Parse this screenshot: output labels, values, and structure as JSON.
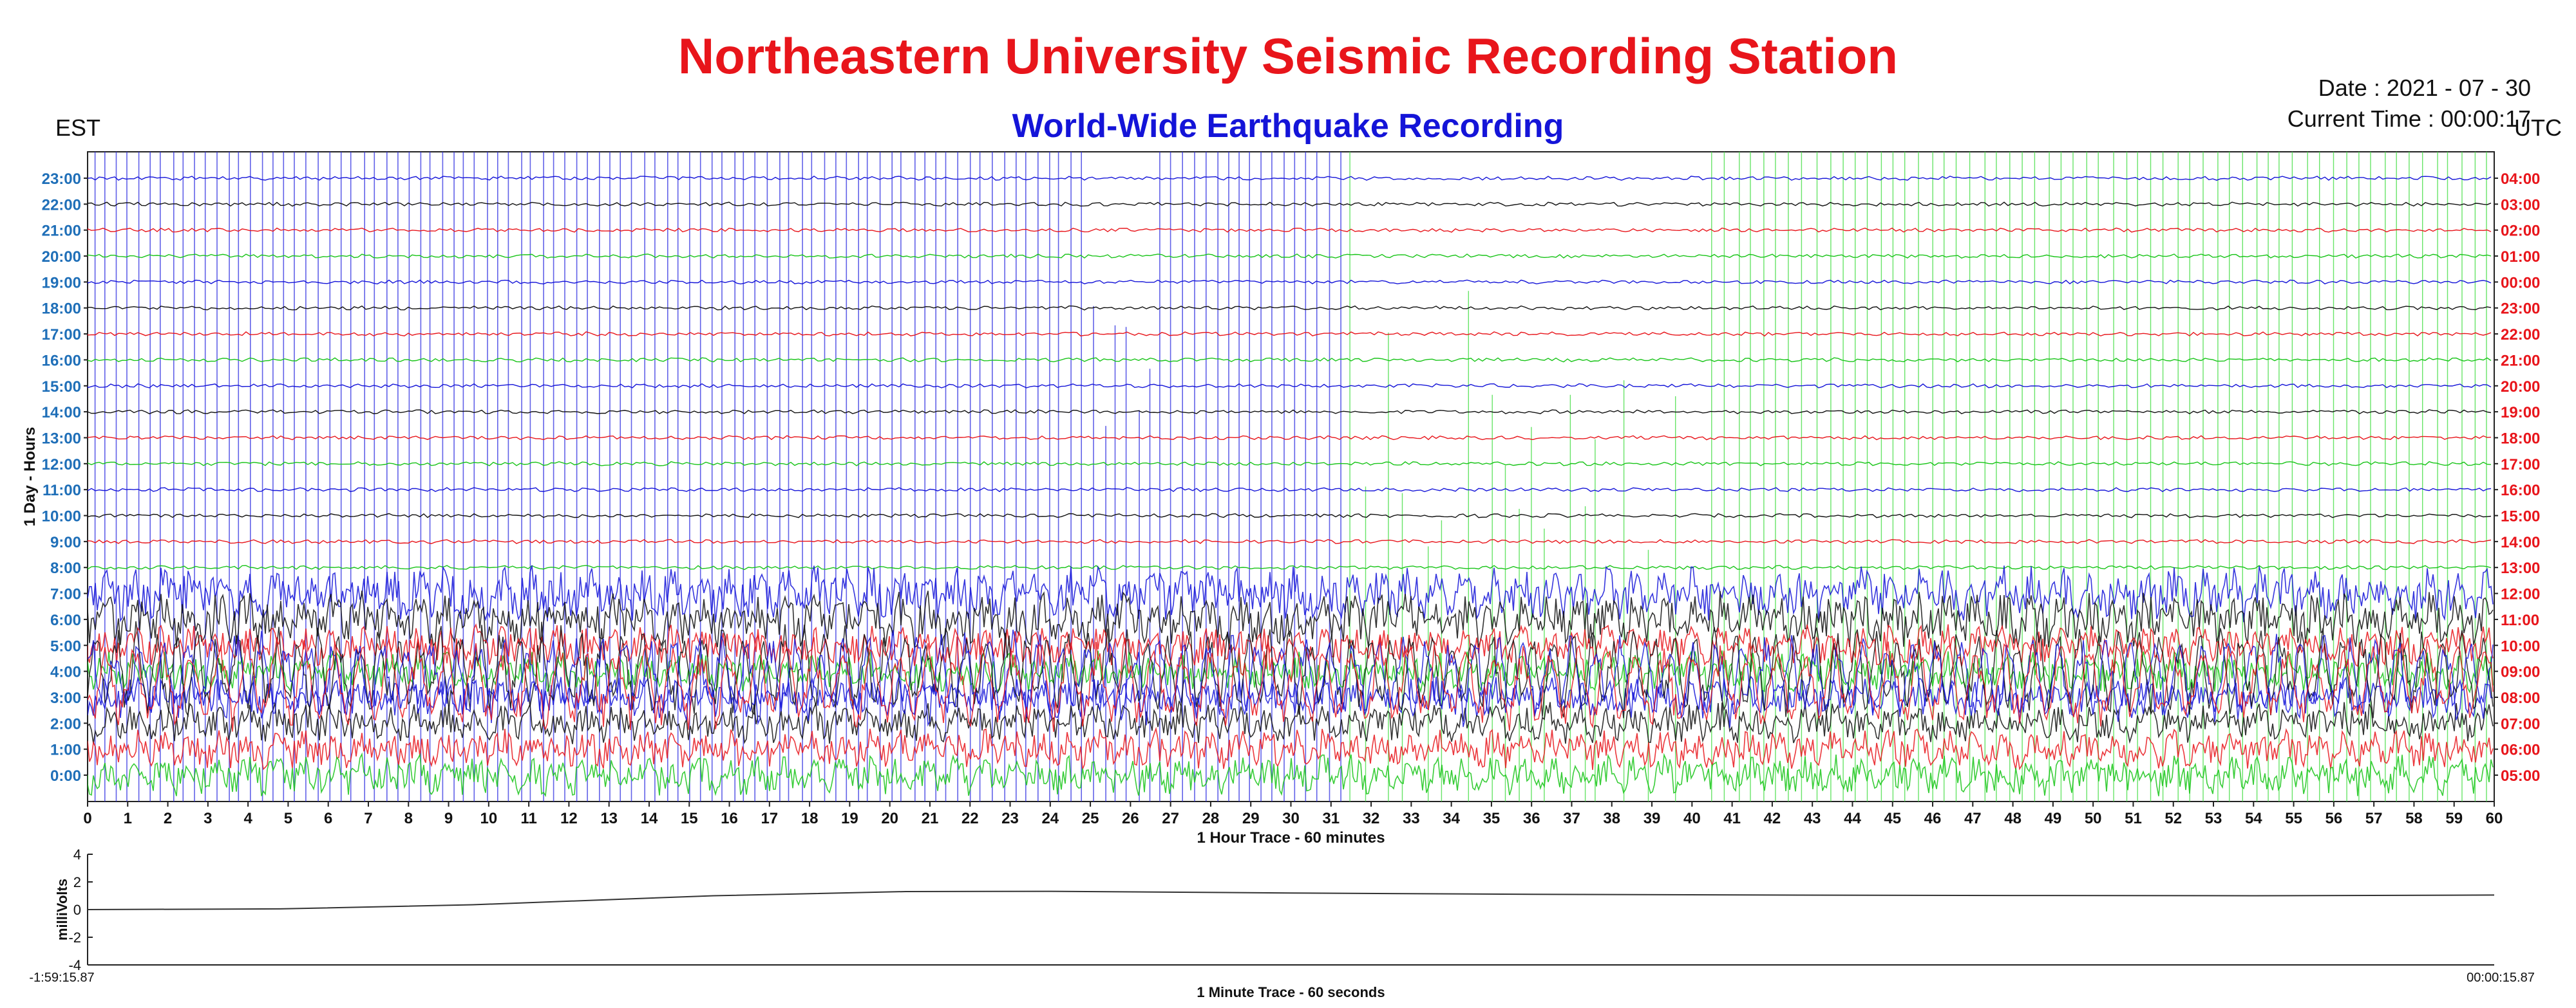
{
  "header": {
    "title": "Northeastern University Seismic Recording Station",
    "subtitle": "World-Wide Earthquake Recording",
    "est_label": "EST",
    "utc_label": "UTC",
    "date_text": "Date : 2021 - 07 - 30",
    "time_text": "Current Time : 00:00:17"
  },
  "colors": {
    "title": "#e8151b",
    "subtitle": "#1414d8",
    "est_ticks": "#1f6fb8",
    "utc_ticks": "#e8151b",
    "trace_cycle": [
      "#111111",
      "#1414d8",
      "#18c418",
      "#e8151b"
    ]
  },
  "chart_data": [
    {
      "type": "line",
      "name": "helicorder",
      "xlabel": "1 Hour Trace - 60 minutes",
      "ylabel": "1 Day - Hours",
      "xlim": [
        0,
        60
      ],
      "x_ticks": [
        0,
        1,
        2,
        3,
        4,
        5,
        6,
        7,
        8,
        9,
        10,
        11,
        12,
        13,
        14,
        15,
        16,
        17,
        18,
        19,
        20,
        21,
        22,
        23,
        24,
        25,
        26,
        27,
        28,
        29,
        30,
        31,
        32,
        33,
        34,
        35,
        36,
        37,
        38,
        39,
        40,
        41,
        42,
        43,
        44,
        45,
        46,
        47,
        48,
        49,
        50,
        51,
        52,
        53,
        54,
        55,
        56,
        57,
        58,
        59,
        60
      ],
      "left_ticks_est": [
        "23:00",
        "22:00",
        "21:00",
        "20:00",
        "19:00",
        "18:00",
        "17:00",
        "16:00",
        "15:00",
        "14:00",
        "13:00",
        "12:00",
        "11:00",
        "10:00",
        "9:00",
        "8:00",
        "7:00",
        "6:00",
        "5:00",
        "4:00",
        "3:00",
        "2:00",
        "1:00",
        "0:00"
      ],
      "right_ticks_utc": [
        "04:00",
        "03:00",
        "02:00",
        "01:00",
        "00:00",
        "23:00",
        "22:00",
        "21:00",
        "20:00",
        "19:00",
        "18:00",
        "17:00",
        "16:00",
        "15:00",
        "14:00",
        "13:00",
        "12:00",
        "11:00",
        "10:00",
        "09:00",
        "08:00",
        "07:00",
        "06:00",
        "05:00"
      ],
      "trace_rows": 24,
      "grid": false
    },
    {
      "type": "line",
      "name": "minute-trace",
      "xlabel": "1 Minute Trace  - 60 seconds",
      "ylabel": "milliVolts",
      "ylim": [
        -4,
        4
      ],
      "y_ticks": [
        4,
        2,
        0,
        -2,
        -4
      ],
      "x_start_label": "-1:59:15.87",
      "x_end_label": "00:00:15.87",
      "series": [
        {
          "x": [
            0,
            0.08,
            0.16,
            0.26,
            0.34,
            0.4,
            0.5,
            0.6,
            0.7,
            0.8,
            0.9,
            1.0
          ],
          "values": [
            0,
            0.05,
            0.35,
            1.0,
            1.3,
            1.32,
            1.2,
            1.1,
            1.05,
            1.02,
            1.0,
            1.05
          ]
        }
      ]
    }
  ]
}
